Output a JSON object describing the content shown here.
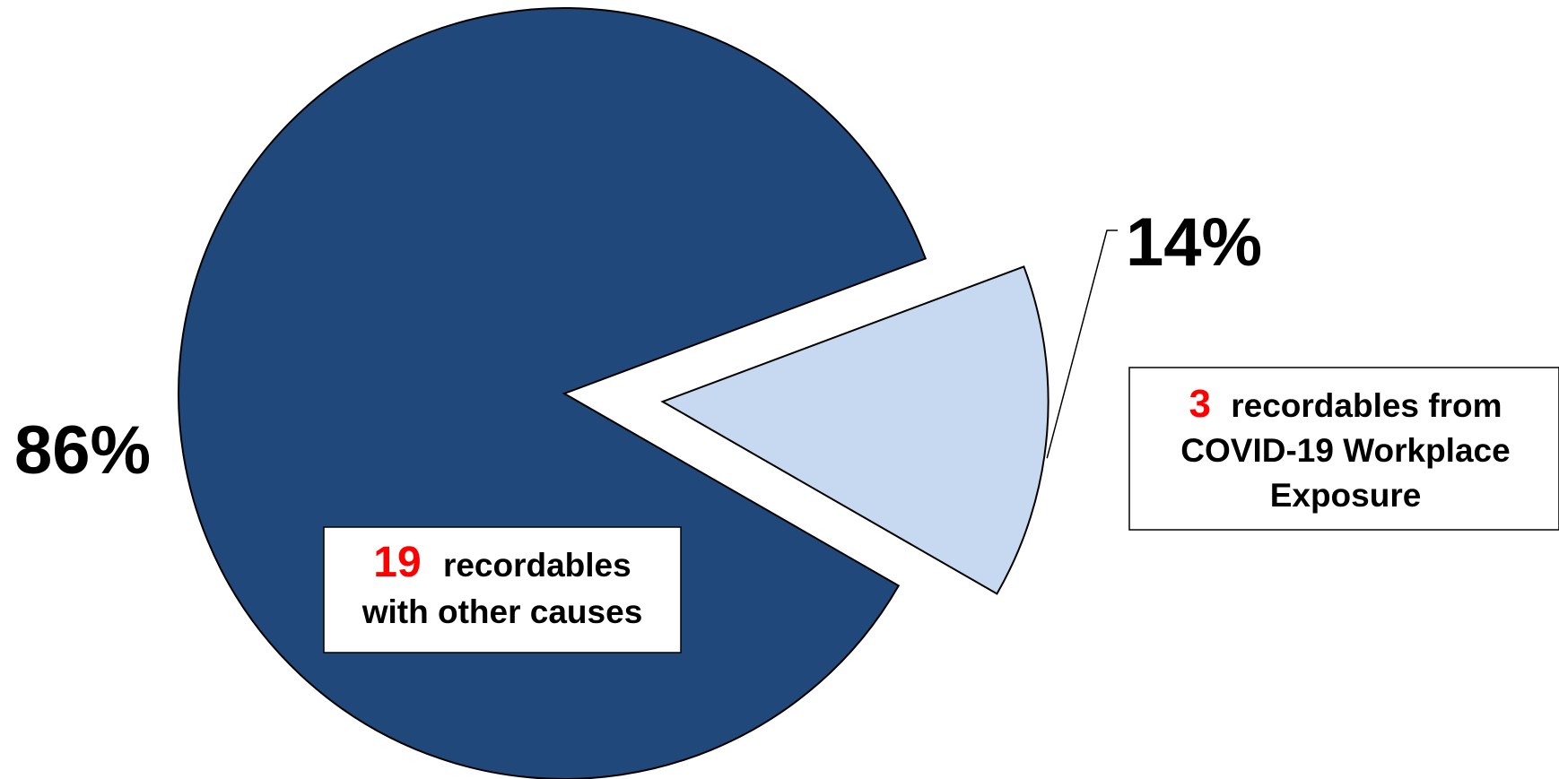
{
  "chart_data": {
    "type": "pie",
    "title": "",
    "slices": [
      {
        "count": "19",
        "value": 86,
        "percent_label": "86%",
        "label_line1": "recordables",
        "label_line2": "with other causes",
        "color": "#21487A",
        "exploded": false
      },
      {
        "count": "3",
        "value": 14,
        "percent_label": "14%",
        "label_line1": "recordables from",
        "label_line2": "COVID-19 Workplace",
        "label_line3": "Exposure",
        "color": "#C7D9F0",
        "exploded": true
      }
    ],
    "legend": "none",
    "outline_color": "#000000"
  }
}
